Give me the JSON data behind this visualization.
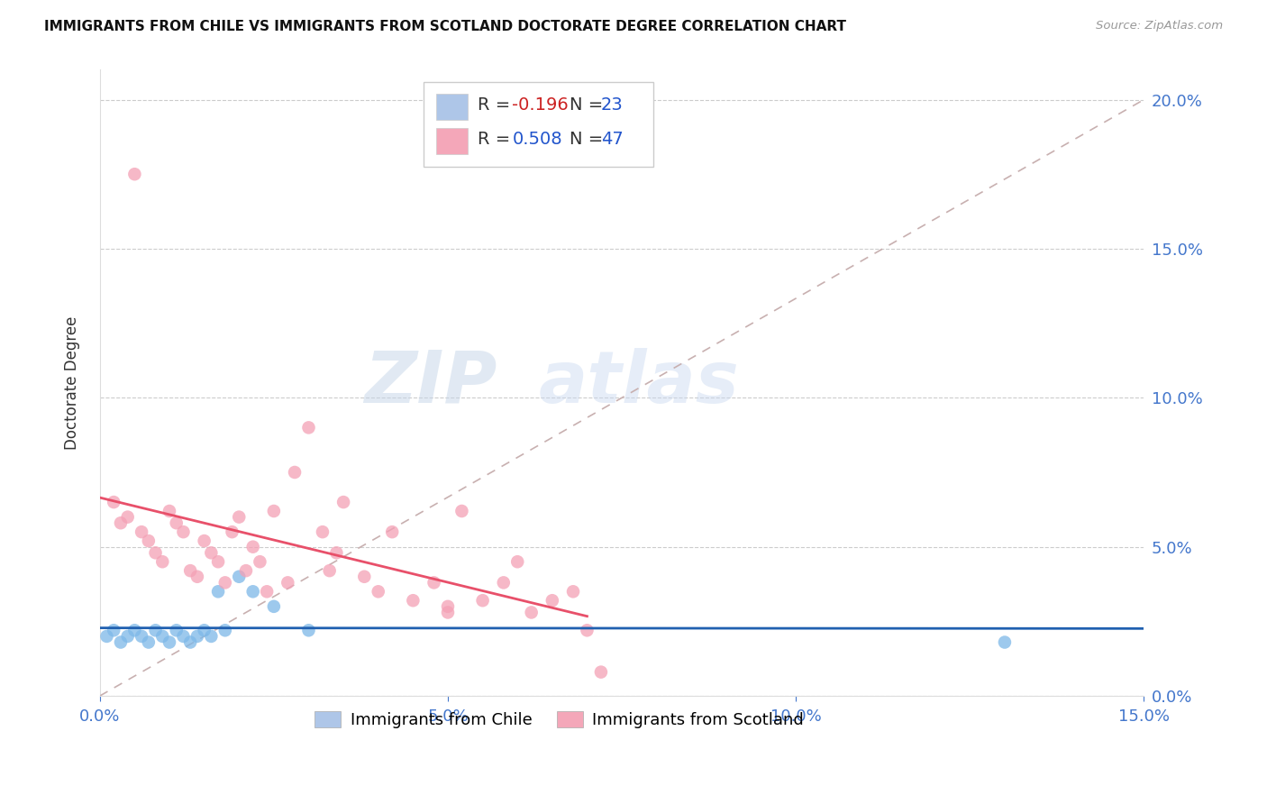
{
  "title": "IMMIGRANTS FROM CHILE VS IMMIGRANTS FROM SCOTLAND DOCTORATE DEGREE CORRELATION CHART",
  "source": "Source: ZipAtlas.com",
  "ylabel": "Doctorate Degree",
  "xlim": [
    0.0,
    0.15
  ],
  "ylim": [
    0.0,
    0.21
  ],
  "chile_color": "#7db8e8",
  "scotland_color": "#f4a0b5",
  "chile_line_color": "#2060b0",
  "scotland_line_color": "#e8506a",
  "diagonal_color": "#c8b0b0",
  "watermark_zip": "ZIP",
  "watermark_atlas": "atlas",
  "chile_x": [
    0.001,
    0.002,
    0.003,
    0.004,
    0.005,
    0.006,
    0.007,
    0.008,
    0.009,
    0.01,
    0.011,
    0.012,
    0.013,
    0.014,
    0.015,
    0.016,
    0.017,
    0.018,
    0.02,
    0.022,
    0.025,
    0.03,
    0.13
  ],
  "chile_y": [
    0.02,
    0.022,
    0.018,
    0.02,
    0.022,
    0.02,
    0.018,
    0.022,
    0.02,
    0.018,
    0.022,
    0.02,
    0.018,
    0.02,
    0.022,
    0.02,
    0.035,
    0.022,
    0.04,
    0.035,
    0.03,
    0.022,
    0.018
  ],
  "scotland_x": [
    0.002,
    0.003,
    0.004,
    0.005,
    0.006,
    0.007,
    0.008,
    0.009,
    0.01,
    0.011,
    0.012,
    0.013,
    0.014,
    0.015,
    0.016,
    0.017,
    0.018,
    0.019,
    0.02,
    0.021,
    0.022,
    0.023,
    0.024,
    0.025,
    0.027,
    0.028,
    0.03,
    0.032,
    0.033,
    0.034,
    0.035,
    0.038,
    0.04,
    0.042,
    0.045,
    0.048,
    0.05,
    0.052,
    0.055,
    0.058,
    0.06,
    0.062,
    0.065,
    0.068,
    0.07,
    0.072,
    0.05
  ],
  "scotland_y": [
    0.065,
    0.058,
    0.06,
    0.175,
    0.055,
    0.052,
    0.048,
    0.045,
    0.062,
    0.058,
    0.055,
    0.042,
    0.04,
    0.052,
    0.048,
    0.045,
    0.038,
    0.055,
    0.06,
    0.042,
    0.05,
    0.045,
    0.035,
    0.062,
    0.038,
    0.075,
    0.09,
    0.055,
    0.042,
    0.048,
    0.065,
    0.04,
    0.035,
    0.055,
    0.032,
    0.038,
    0.028,
    0.062,
    0.032,
    0.038,
    0.045,
    0.028,
    0.032,
    0.035,
    0.022,
    0.008,
    0.03
  ]
}
